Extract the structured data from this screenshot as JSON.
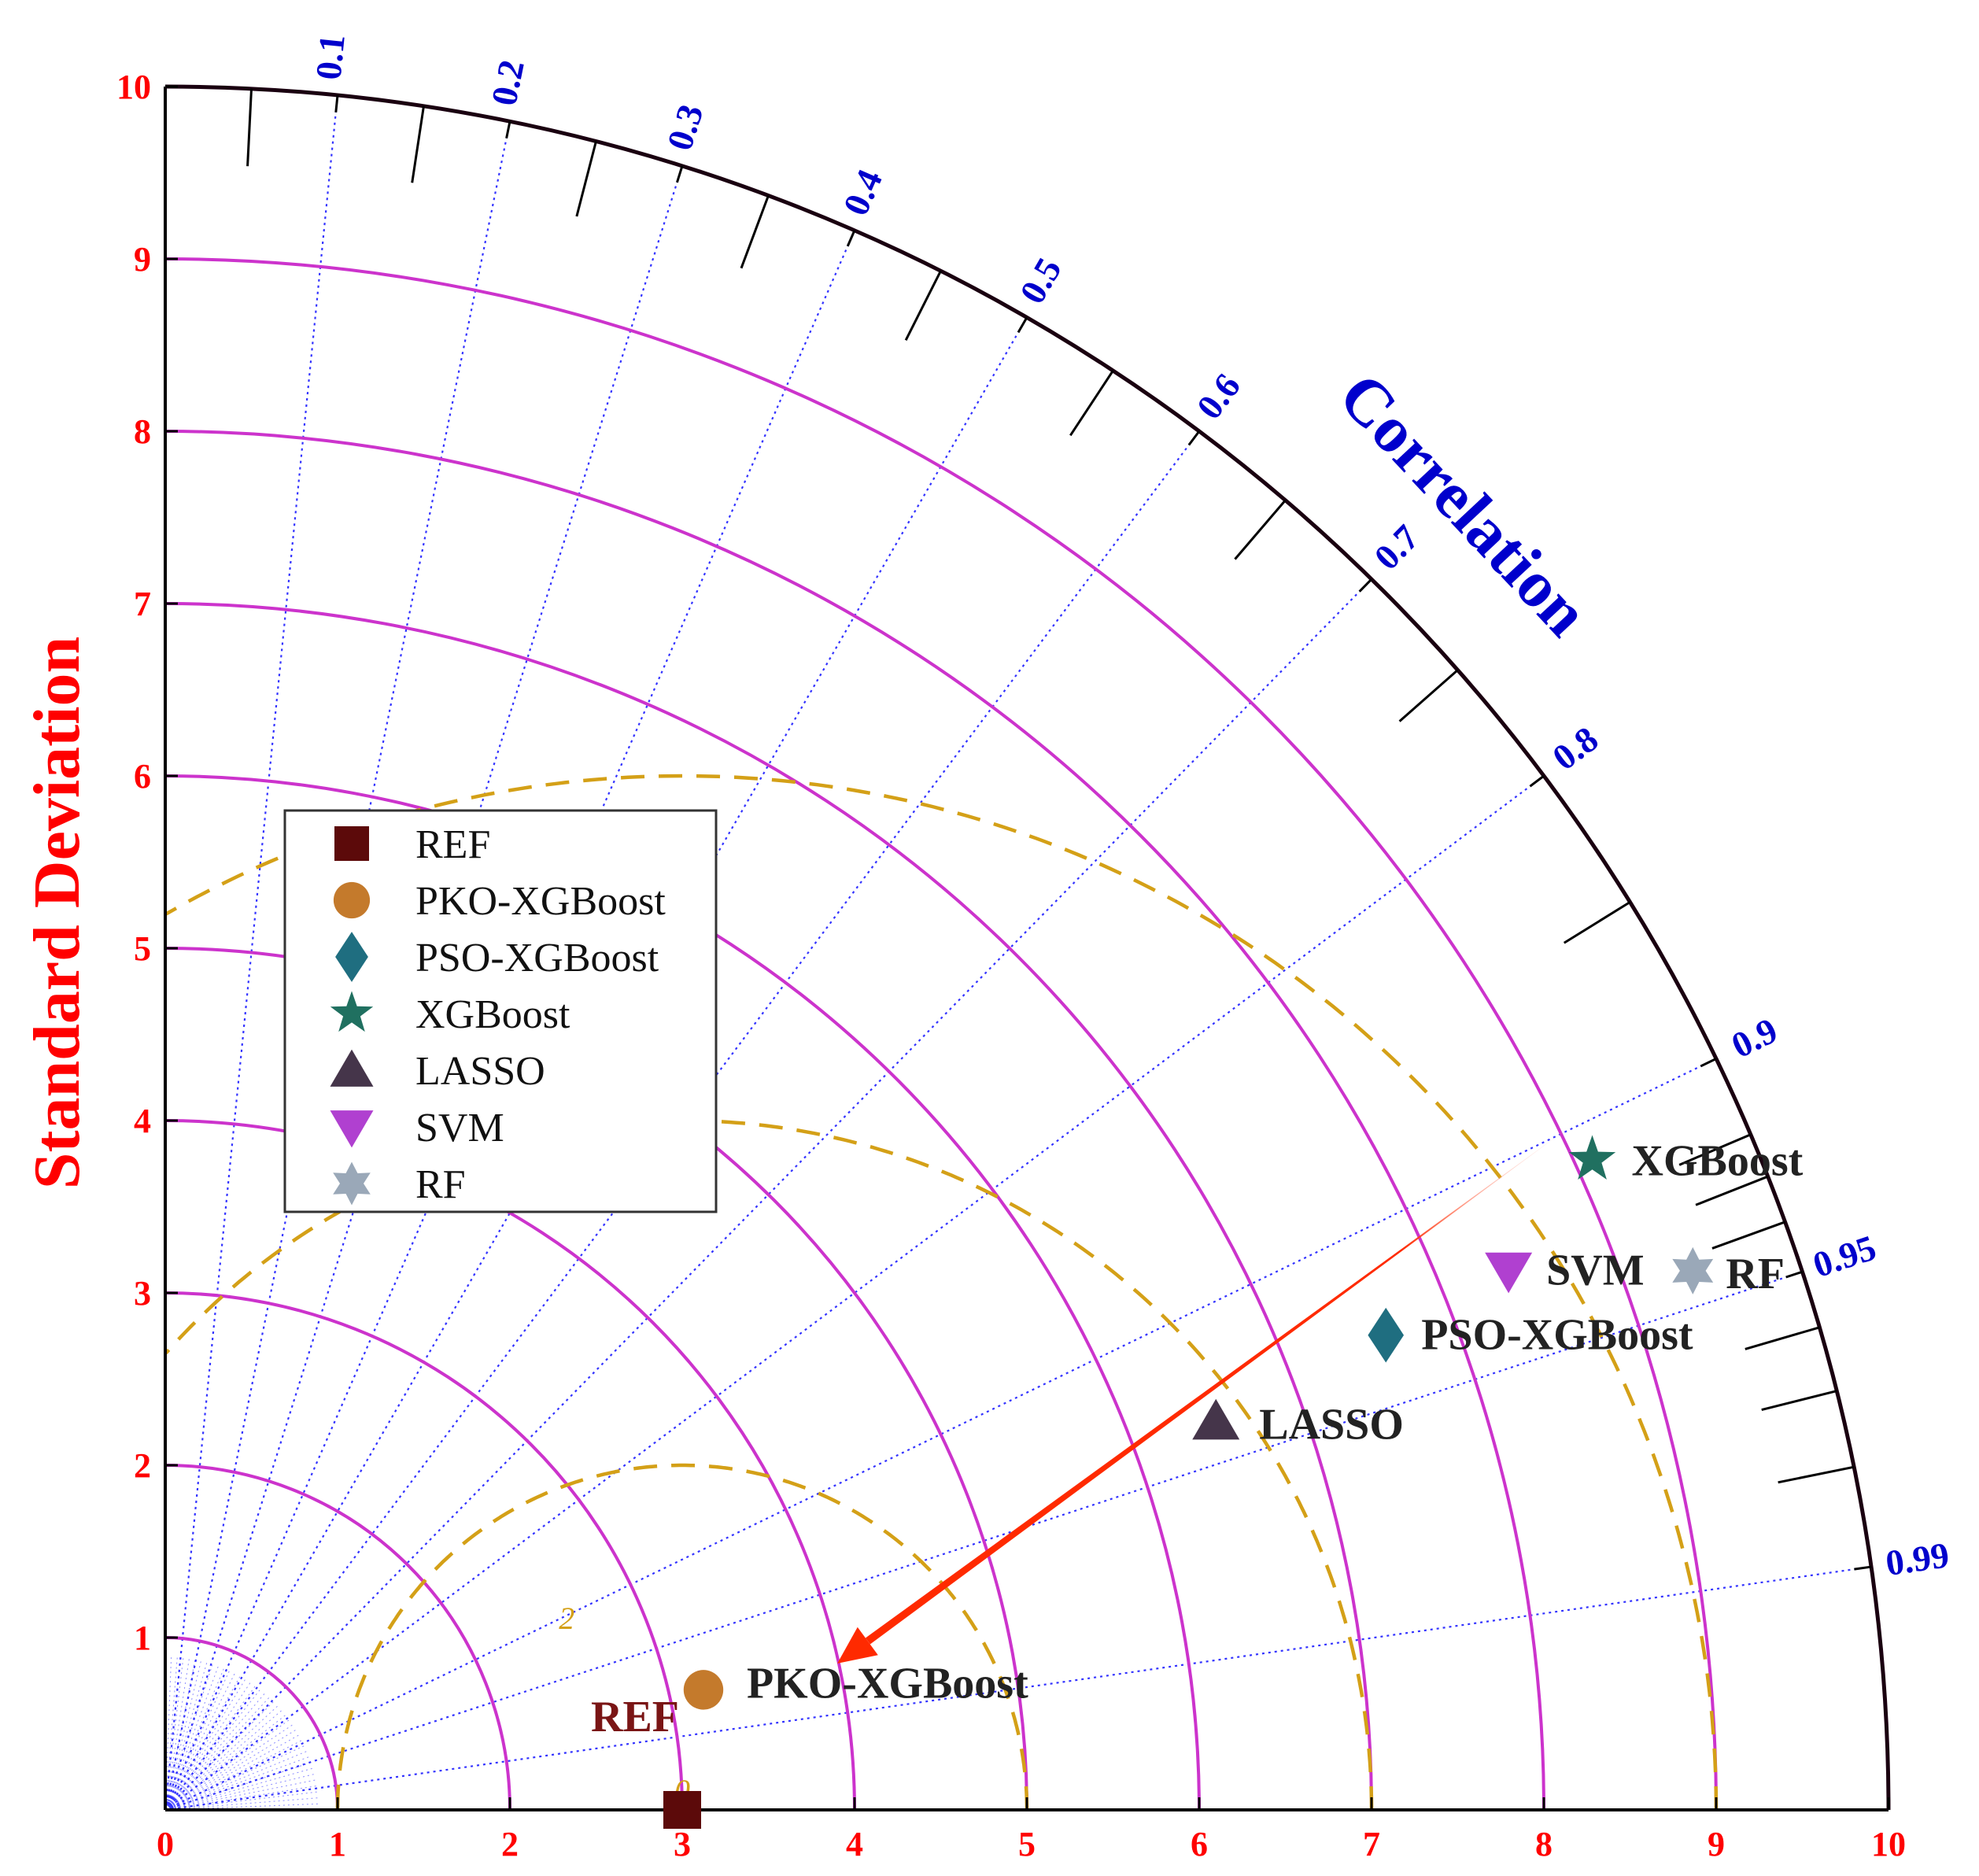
{
  "chart_data": {
    "type": "scatter",
    "subtype": "taylor-diagram",
    "title": "",
    "ylabel": "Standard Deviation",
    "correlation_label": "Correlation",
    "std_range": [
      0,
      10
    ],
    "std_ticks": [
      0,
      1,
      2,
      3,
      4,
      5,
      6,
      7,
      8,
      9,
      10
    ],
    "std_arcs": [
      1,
      2,
      3,
      4,
      5,
      6,
      7,
      8,
      9
    ],
    "correlation_ticks": [
      0.1,
      0.2,
      0.3,
      0.4,
      0.5,
      0.6,
      0.7,
      0.8,
      0.9,
      0.95,
      0.99
    ],
    "centered_rmse_arcs": [
      2,
      4,
      6
    ],
    "centered_rmse_labels": [
      "0",
      "2"
    ],
    "reference_std": 3.0,
    "series": [
      {
        "name": "REF",
        "marker": "square",
        "color": "#5c0a0a",
        "std": 3.0,
        "correlation": 1.0,
        "point_label": "REF"
      },
      {
        "name": "PKO-XGBoost",
        "marker": "circle",
        "color": "#c47a2c",
        "std": 3.2,
        "correlation": 0.976,
        "point_label": "PKO-XGBoost"
      },
      {
        "name": "PSO-XGBoost",
        "marker": "diamond",
        "color": "#1f6e80",
        "std": 7.6,
        "correlation": 0.932,
        "point_label": "PSO-XGBoost"
      },
      {
        "name": "XGBoost",
        "marker": "star5",
        "color": "#207060",
        "std": 9.1,
        "correlation": 0.91,
        "point_label": "XGBoost"
      },
      {
        "name": "LASSO",
        "marker": "triangle-up",
        "color": "#45354a",
        "std": 6.5,
        "correlation": 0.938,
        "point_label": "LASSO"
      },
      {
        "name": "SVM",
        "marker": "triangle-down",
        "color": "#b040d0",
        "std": 8.4,
        "correlation": 0.928,
        "point_label": "SVM"
      },
      {
        "name": "RF",
        "marker": "star6",
        "color": "#9aa8b8",
        "std": 9.4,
        "correlation": 0.943,
        "point_label": "RF"
      }
    ],
    "legend": {
      "position": "center-left"
    },
    "colors": {
      "std_arc": "#cc33cc",
      "crmse_arc": "#d4a017",
      "corr_ray": "#3333ff",
      "axis": "#000000",
      "arrow": "#ff2a00",
      "tick_text": "#ff0000",
      "corr_text": "#0000cc"
    },
    "arrow": {
      "from": {
        "x": 8.2,
        "y": 4.0
      },
      "to": {
        "x": 3.9,
        "y": 0.85
      }
    }
  }
}
